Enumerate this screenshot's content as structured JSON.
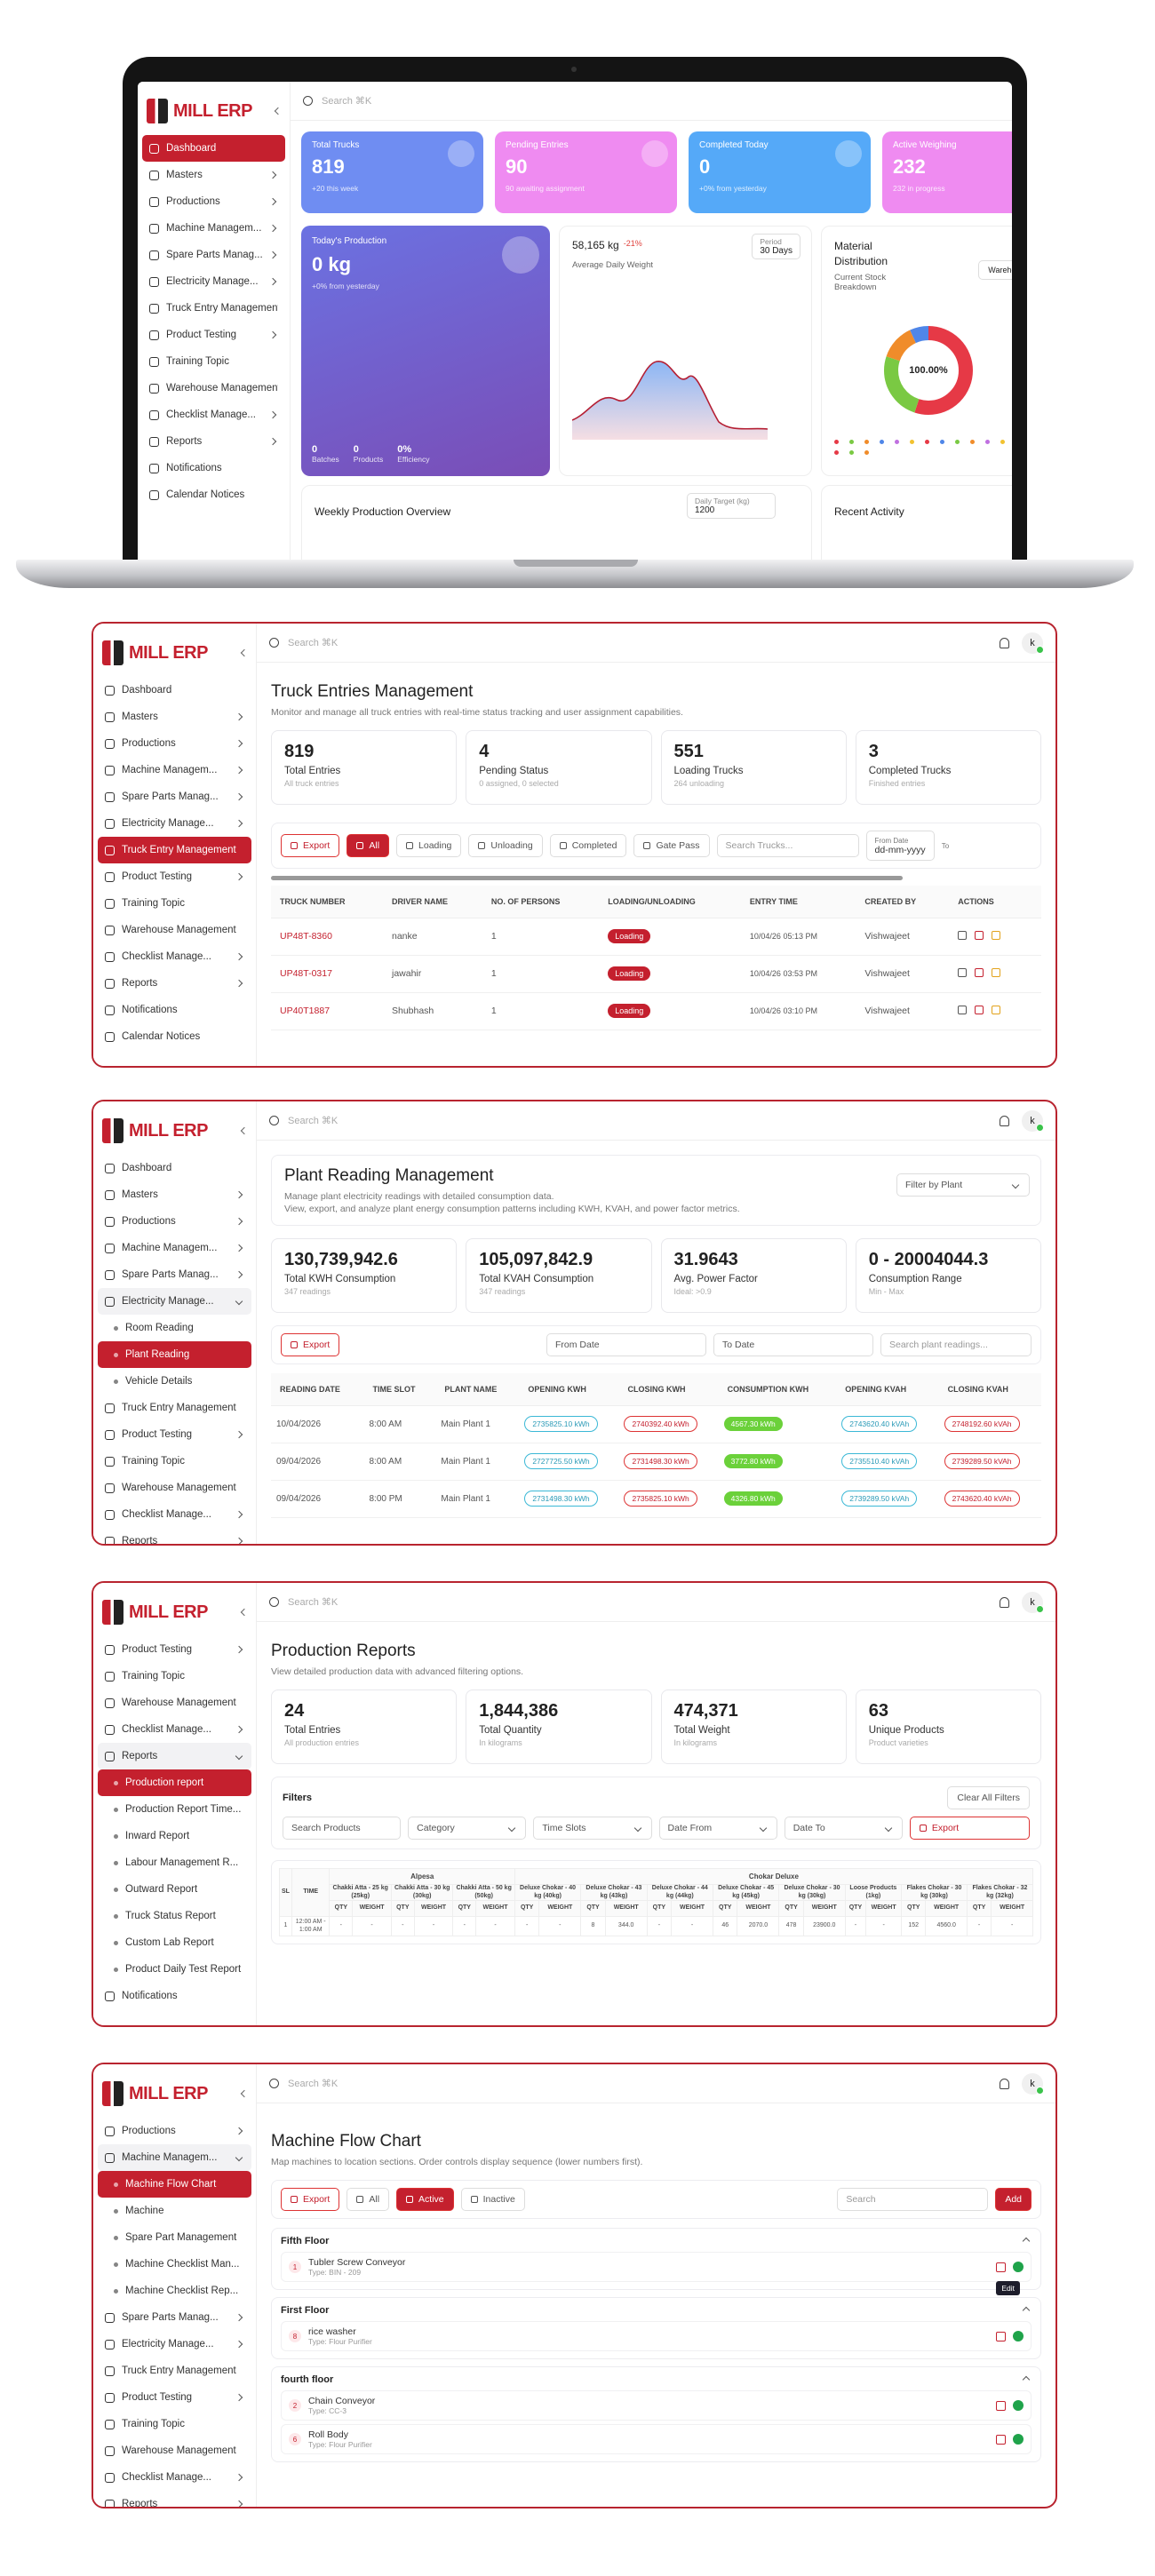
{
  "app": {
    "logo": "MILL ERP",
    "search": "Search ⌘K",
    "avatar": "k"
  },
  "dashboard": {
    "sidebar": [
      "Dashboard",
      "Masters",
      "Productions",
      "Machine Managem...",
      "Spare Parts Manag...",
      "Electricity Manage...",
      "Truck Entry Management",
      "Product Testing",
      "Training Topic",
      "Warehouse Management",
      "Checklist Manage...",
      "Reports",
      "Notifications",
      "Calendar Notices"
    ],
    "stat_cards": [
      {
        "title": "Total Trucks",
        "value": "819",
        "note": "+20 this week"
      },
      {
        "title": "Pending Entries",
        "value": "90",
        "note": "90 awaiting assignment"
      },
      {
        "title": "Completed Today",
        "value": "0",
        "note": "+0% from yesterday"
      },
      {
        "title": "Active Weighing",
        "value": "232",
        "note": "232 in progress"
      }
    ],
    "production": {
      "title": "Today's Production",
      "value": "0 kg",
      "note": "+0% from yesterday",
      "stats": [
        {
          "value": "0",
          "label": "Batches"
        },
        {
          "value": "0",
          "label": "Products"
        },
        {
          "value": "0%",
          "label": "Efficiency"
        }
      ]
    },
    "weight": {
      "value": "58,165 kg",
      "change": "-21%",
      "label": "Average Daily Weight",
      "period_label": "Period",
      "period": "30 Days"
    },
    "material": {
      "title": "Material Distribution",
      "subtitle": "Current Stock Breakdown",
      "filter": "Warehouse",
      "center": "100.00%"
    },
    "weekly": {
      "title": "Weekly Production Overview",
      "target_label": "Daily Target (kg)",
      "target": "1200"
    },
    "activity": {
      "title": "Recent Activity"
    }
  },
  "truck_entries": {
    "sidebar": [
      "Dashboard",
      "Masters",
      "Productions",
      "Machine Managem...",
      "Spare Parts Manag...",
      "Electricity Manage...",
      "Truck Entry Management",
      "Product Testing",
      "Training Topic",
      "Warehouse Management",
      "Checklist Manage...",
      "Reports",
      "Notifications",
      "Calendar Notices"
    ],
    "title": "Truck Entries Management",
    "subtitle": "Monitor and manage all truck entries with real-time status tracking and user assignment capabilities.",
    "stats": [
      {
        "value": "819",
        "label": "Total Entries",
        "note": "All truck entries"
      },
      {
        "value": "4",
        "label": "Pending Status",
        "note": "0 assigned, 0 selected"
      },
      {
        "value": "551",
        "label": "Loading Trucks",
        "note": "264 unloading"
      },
      {
        "value": "3",
        "label": "Completed Trucks",
        "note": "Finished entries"
      }
    ],
    "toolbar": {
      "export": "Export",
      "filters": [
        "All",
        "Loading",
        "Unloading",
        "Completed",
        "Gate Pass"
      ],
      "search": "Search Trucks...",
      "from_label": "From Date",
      "from_placeholder": "dd-mm-yyyy",
      "to_label": "To"
    },
    "columns": [
      "TRUCK NUMBER",
      "DRIVER NAME",
      "NO. OF PERSONS",
      "LOADING/UNLOADING",
      "ENTRY TIME",
      "CREATED BY",
      "ACTIONS"
    ],
    "rows": [
      [
        "UP48T-8360",
        "nanke",
        "1",
        "Loading",
        "10/04/26 05:13 PM",
        "Vishwajeet"
      ],
      [
        "UP48T-0317",
        "jawahir",
        "1",
        "Loading",
        "10/04/26 03:53 PM",
        "Vishwajeet"
      ],
      [
        "UP40T1887",
        "Shubhash",
        "1",
        "Loading",
        "10/04/26 03:10 PM",
        "Vishwajeet"
      ]
    ]
  },
  "plant_reading": {
    "sidebar": [
      "Dashboard",
      "Masters",
      "Productions",
      "Machine Managem...",
      "Spare Parts Manag...",
      "Electricity Manage...",
      "Room Reading",
      "Plant Reading",
      "Vehicle Details",
      "Truck Entry Management",
      "Product Testing",
      "Training Topic",
      "Warehouse Management",
      "Checklist Manage...",
      "Reports"
    ],
    "title": "Plant Reading Management",
    "description": [
      "Manage plant electricity readings with detailed consumption data.",
      "View, export, and analyze plant energy consumption patterns including KWH, KVAH, and power factor metrics."
    ],
    "filter": "Filter by Plant",
    "stats": [
      {
        "value": "130,739,942.6",
        "label": "Total KWH Consumption",
        "note": "347 readings"
      },
      {
        "value": "105,097,842.9",
        "label": "Total KVAH Consumption",
        "note": "347 readings"
      },
      {
        "value": "31.9643",
        "label": "Avg. Power Factor",
        "note": "Ideal: >0.9"
      },
      {
        "value": "0 - 20004044.3",
        "label": "Consumption Range",
        "note": "Min - Max"
      }
    ],
    "toolbar": {
      "export": "Export",
      "from": "From Date",
      "to": "To Date",
      "search": "Search plant readings..."
    },
    "columns": [
      "READING DATE",
      "TIME SLOT",
      "PLANT NAME",
      "OPENING KWH",
      "CLOSING KWH",
      "CONSUMPTION KWH",
      "OPENING KVAH",
      "CLOSING KVAH"
    ],
    "rows": [
      [
        "10/04/2026",
        "8:00 AM",
        "Main Plant 1",
        "2735825.10 kWh",
        "2740392.40 kWh",
        "4567.30 kWh",
        "2743620.40 kVAh",
        "2748192.60 kVAh"
      ],
      [
        "09/04/2026",
        "8:00 AM",
        "Main Plant 1",
        "2727725.50 kWh",
        "2731498.30 kWh",
        "3772.80 kWh",
        "2735510.40 kVAh",
        "2739289.50 kVAh"
      ],
      [
        "09/04/2026",
        "8:00 PM",
        "Main Plant 1",
        "2731498.30 kWh",
        "2735825.10 kWh",
        "4326.80 kWh",
        "2739289.50 kVAh",
        "2743620.40 kVAh"
      ]
    ]
  },
  "production_reports": {
    "sidebar": [
      "Product Testing",
      "Training Topic",
      "Warehouse Management",
      "Checklist Manage...",
      "Reports",
      "Production report",
      "Production Report Time...",
      "Inward Report",
      "Labour Management R...",
      "Outward Report",
      "Truck Status Report",
      "Custom Lab Report",
      "Product Daily Test Report",
      "Notifications"
    ],
    "title": "Production Reports",
    "subtitle": "View detailed production data with advanced filtering options.",
    "stats": [
      {
        "value": "24",
        "label": "Total Entries",
        "note": "All production entries"
      },
      {
        "value": "1,844,386",
        "label": "Total Quantity",
        "note": "In kilograms"
      },
      {
        "value": "474,371",
        "label": "Total Weight",
        "note": "In kilograms"
      },
      {
        "value": "63",
        "label": "Unique Products",
        "note": "Product varieties"
      }
    ],
    "filters": {
      "title": "Filters",
      "clear": "Clear All Filters",
      "search": "Search Products",
      "category": "Category",
      "time_slots": "Time Slots",
      "date_from": "Date From",
      "date_to": "Date To",
      "export": "Export"
    },
    "table": {
      "sl": "SL",
      "time": "TIME",
      "qty": "QTY",
      "weight": "WEIGHT",
      "groups": [
        {
          "name": "Alpesa",
          "columns": [
            "Chakki Atta - 25 kg (25kg)",
            "Chakki Atta - 30 kg (30kg)",
            "Chakki Atta - 50 kg (50kg)"
          ]
        },
        {
          "name": "Chokar Deluxe",
          "columns": [
            "Deluxe Chokar - 40 kg (40kg)",
            "Deluxe Chokar - 43 kg (43kg)",
            "Deluxe Chokar - 44 kg (44kg)",
            "Deluxe Chokar - 45 kg (45kg)",
            "Deluxe Chokar - 30 kg (30kg)",
            "Loose Products (1kg)",
            "Flakes Chokar - 30 kg (30kg)",
            "Flakes Chokar - 32 kg (32kg)"
          ]
        }
      ],
      "rows": [
        {
          "sl": "1",
          "time": "12:00 AM - 1:00 AM",
          "cells": [
            "-",
            "-",
            "-",
            "-",
            "-",
            "-",
            "-",
            "-",
            "8",
            "344.0",
            "-",
            "-",
            "46",
            "2070.0",
            "478",
            "23900.0",
            "-",
            "-",
            "152",
            "4560.0",
            "-",
            "-"
          ]
        }
      ]
    }
  },
  "machine_flow": {
    "sidebar": [
      "Productions",
      "Machine Managem...",
      "Machine Flow Chart",
      "Machine",
      "Spare Part Management",
      "Machine Checklist Man...",
      "Machine Checklist Rep...",
      "Spare Parts Manag...",
      "Electricity Manage...",
      "Truck Entry Management",
      "Product Testing",
      "Training Topic",
      "Warehouse Management",
      "Checklist Manage...",
      "Reports"
    ],
    "title": "Machine Flow Chart",
    "subtitle": "Map machines to location sections. Order controls display sequence (lower numbers first).",
    "toolbar": {
      "export": "Export",
      "all": "All",
      "active": "Active",
      "inactive": "Inactive",
      "search": "Search",
      "add": "Add"
    },
    "tooltip": "Edit",
    "sections": [
      {
        "name": "Fifth Floor",
        "items": [
          {
            "order": "1",
            "name": "Tubler Screw Conveyor",
            "type": "Type: BIN - 209"
          }
        ]
      },
      {
        "name": "First Floor",
        "items": [
          {
            "order": "8",
            "name": "rice washer",
            "type": "Type: Flour Purifier"
          }
        ]
      },
      {
        "name": "fourth floor",
        "items": [
          {
            "order": "2",
            "name": "Chain Conveyor",
            "type": "Type: CC-3"
          },
          {
            "order": "6",
            "name": "Roll Body",
            "type": "Type: Flour Purifier"
          }
        ]
      }
    ]
  }
}
